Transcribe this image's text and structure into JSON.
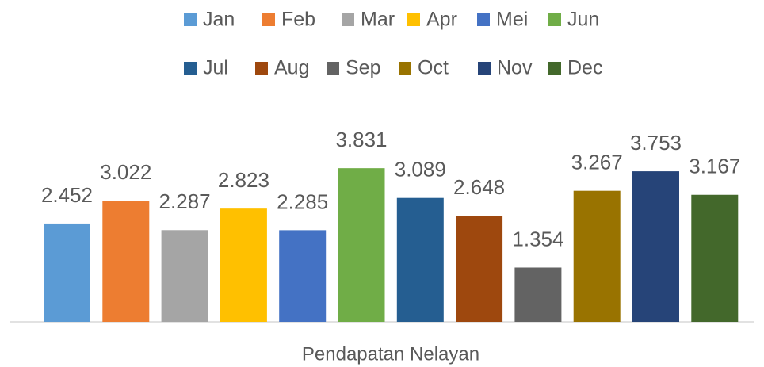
{
  "chart_data": {
    "type": "bar",
    "categories": [
      "Pendapatan Nelayan"
    ],
    "series": [
      {
        "name": "Jan",
        "color": "#5b9bd5",
        "values": [
          2.452
        ]
      },
      {
        "name": "Feb",
        "color": "#ed7d31",
        "values": [
          3.022
        ]
      },
      {
        "name": "Mar",
        "color": "#a5a5a5",
        "values": [
          2.287
        ]
      },
      {
        "name": "Apr",
        "color": "#ffc000",
        "values": [
          2.823
        ]
      },
      {
        "name": "Mei",
        "color": "#4472c4",
        "values": [
          2.285
        ]
      },
      {
        "name": "Jun",
        "color": "#70ad47",
        "values": [
          3.831
        ]
      },
      {
        "name": "Jul",
        "color": "#255e91",
        "values": [
          3.089
        ]
      },
      {
        "name": "Aug",
        "color": "#9e480e",
        "values": [
          2.648
        ]
      },
      {
        "name": "Sep",
        "color": "#636363",
        "values": [
          1.354
        ]
      },
      {
        "name": "Oct",
        "color": "#997300",
        "values": [
          3.267
        ]
      },
      {
        "name": "Nov",
        "color": "#264478",
        "values": [
          3.753
        ]
      },
      {
        "name": "Dec",
        "color": "#43682b",
        "values": [
          3.167
        ]
      }
    ],
    "legend": "top"
  }
}
